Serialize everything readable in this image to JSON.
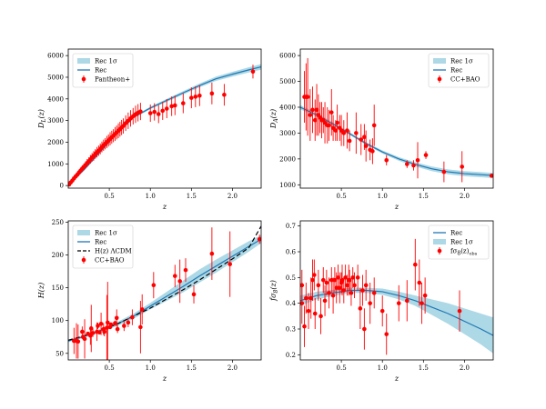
{
  "colors": {
    "band": "#add8e6",
    "line": "#1f77b4",
    "data": "#ff0000",
    "lcdm": "#000000"
  },
  "chart_data": [
    {
      "type": "scatter",
      "id": "dl",
      "xlabel": "z",
      "ylabel": "D_L(z)",
      "xlim": [
        0.0,
        2.35
      ],
      "ylim": [
        -120,
        6300
      ],
      "xticks": [
        0.5,
        1.0,
        1.5,
        2.0
      ],
      "xtick_labels": [
        "0.5",
        "1.0",
        "1.5",
        "2.0"
      ],
      "yticks": [
        0,
        1000,
        2000,
        3000,
        4000,
        5000,
        6000
      ],
      "ytick_labels": [
        "0",
        "1000",
        "2000",
        "3000",
        "4000",
        "5000",
        "6000"
      ],
      "legend": {
        "position": "upper-left",
        "entries": [
          {
            "kind": "band",
            "label": "Rec 1σ"
          },
          {
            "kind": "line",
            "label": "Rec"
          },
          {
            "kind": "marker",
            "label": "Pantheon+"
          }
        ]
      },
      "curve": {
        "x": [
          0.0,
          0.2,
          0.4,
          0.6,
          0.8,
          1.0,
          1.2,
          1.4,
          1.6,
          1.8,
          2.0,
          2.2,
          2.35
        ],
        "y": [
          0,
          760,
          1600,
          2430,
          3160,
          3580,
          3930,
          4280,
          4620,
          4930,
          5140,
          5340,
          5480
        ],
        "sigma": [
          0,
          10,
          20,
          30,
          45,
          60,
          70,
          80,
          90,
          100,
          110,
          120,
          130
        ]
      },
      "points": {
        "x": [
          0.01,
          0.03,
          0.05,
          0.07,
          0.09,
          0.11,
          0.13,
          0.15,
          0.17,
          0.19,
          0.21,
          0.23,
          0.25,
          0.27,
          0.29,
          0.31,
          0.33,
          0.35,
          0.37,
          0.39,
          0.41,
          0.43,
          0.45,
          0.47,
          0.49,
          0.51,
          0.53,
          0.55,
          0.57,
          0.59,
          0.61,
          0.63,
          0.65,
          0.67,
          0.7,
          0.73,
          0.76,
          0.79,
          0.82,
          0.85,
          0.88,
          1.0,
          1.05,
          1.1,
          1.15,
          1.2,
          1.26,
          1.3,
          1.4,
          1.5,
          1.55,
          1.6,
          1.75,
          1.9,
          2.25
        ],
        "y": [
          50,
          140,
          230,
          330,
          420,
          500,
          600,
          690,
          780,
          860,
          950,
          1040,
          1120,
          1210,
          1300,
          1370,
          1460,
          1540,
          1610,
          1690,
          1780,
          1860,
          1930,
          2010,
          2080,
          2160,
          2230,
          2300,
          2380,
          2450,
          2530,
          2600,
          2680,
          2750,
          2880,
          2990,
          3100,
          3200,
          3290,
          3360,
          3420,
          3340,
          3400,
          3300,
          3450,
          3550,
          3660,
          3700,
          3800,
          4050,
          4100,
          4150,
          4250,
          4190,
          5260
        ],
        "err": [
          20,
          40,
          50,
          80,
          100,
          100,
          120,
          120,
          150,
          150,
          160,
          180,
          180,
          200,
          200,
          220,
          220,
          240,
          240,
          250,
          250,
          260,
          260,
          280,
          280,
          300,
          300,
          300,
          320,
          320,
          340,
          340,
          350,
          350,
          360,
          380,
          380,
          380,
          400,
          400,
          400,
          400,
          400,
          420,
          420,
          440,
          450,
          450,
          460,
          480,
          480,
          480,
          500,
          500,
          320
        ]
      }
    },
    {
      "type": "scatter",
      "id": "da",
      "xlabel": "z",
      "ylabel": "D_A(z)",
      "xlim": [
        0.0,
        2.35
      ],
      "ylim": [
        870,
        6250
      ],
      "xticks": [
        0.5,
        1.0,
        1.5,
        2.0
      ],
      "xtick_labels": [
        "0.5",
        "1.0",
        "1.5",
        "2.0"
      ],
      "yticks": [
        1000,
        2000,
        3000,
        4000,
        5000,
        6000
      ],
      "ytick_labels": [
        "1000",
        "2000",
        "3000",
        "4000",
        "5000",
        "6000"
      ],
      "legend": {
        "position": "upper-right",
        "entries": [
          {
            "kind": "band",
            "label": "Rec 1σ"
          },
          {
            "kind": "line",
            "label": "Rec"
          },
          {
            "kind": "marker",
            "label": "CC+BAO"
          }
        ]
      },
      "curve": {
        "x": [
          0.0,
          0.2,
          0.4,
          0.6,
          0.8,
          1.0,
          1.2,
          1.4,
          1.6,
          1.8,
          2.0,
          2.2,
          2.35
        ],
        "y": [
          4000,
          3700,
          3350,
          2980,
          2600,
          2270,
          2000,
          1790,
          1620,
          1500,
          1430,
          1390,
          1360
        ],
        "sigma": [
          80,
          70,
          60,
          55,
          55,
          60,
          70,
          80,
          90,
          95,
          100,
          100,
          100
        ]
      },
      "points": {
        "x": [
          0.05,
          0.07,
          0.09,
          0.12,
          0.15,
          0.18,
          0.2,
          0.22,
          0.24,
          0.26,
          0.28,
          0.3,
          0.33,
          0.35,
          0.38,
          0.4,
          0.43,
          0.45,
          0.48,
          0.5,
          0.53,
          0.57,
          0.6,
          0.68,
          0.74,
          0.78,
          0.8,
          0.85,
          0.88,
          0.9,
          1.05,
          1.3,
          1.38,
          1.43,
          1.53,
          1.75,
          1.97,
          2.33
        ],
        "y": [
          4400,
          4400,
          4400,
          3700,
          3900,
          3500,
          3900,
          3700,
          3600,
          3500,
          3500,
          3400,
          3300,
          3300,
          3800,
          3200,
          3100,
          3400,
          3200,
          3100,
          3000,
          3100,
          2700,
          3000,
          2750,
          2850,
          2500,
          2350,
          2300,
          3300,
          1950,
          1800,
          1750,
          1950,
          2150,
          1500,
          1700,
          1350
        ],
        "err": [
          1000,
          1300,
          1500,
          1000,
          900,
          800,
          1000,
          800,
          600,
          700,
          500,
          800,
          700,
          600,
          900,
          500,
          400,
          700,
          500,
          600,
          500,
          700,
          400,
          800,
          600,
          500,
          600,
          400,
          500,
          800,
          200,
          150,
          200,
          700,
          150,
          400,
          600,
          60
        ]
      }
    },
    {
      "type": "scatter",
      "id": "hz",
      "xlabel": "z",
      "ylabel": "H(z)",
      "xlim": [
        0.0,
        2.35
      ],
      "ylim": [
        40,
        252
      ],
      "xticks": [
        0.5,
        1.0,
        1.5,
        2.0
      ],
      "xtick_labels": [
        "0.5",
        "1.0",
        "1.5",
        "2.0"
      ],
      "yticks": [
        50,
        100,
        150,
        200,
        250
      ],
      "ytick_labels": [
        "50",
        "100",
        "150",
        "200",
        "250"
      ],
      "legend": {
        "position": "upper-left",
        "entries": [
          {
            "kind": "band",
            "label": "Rec 1σ"
          },
          {
            "kind": "line",
            "label": "Rec"
          },
          {
            "kind": "dashed",
            "label": "H(z) ΛCDM"
          },
          {
            "kind": "marker",
            "label": "CC+BAO"
          }
        ]
      },
      "curve": {
        "x": [
          0.0,
          0.2,
          0.4,
          0.6,
          0.8,
          1.0,
          1.2,
          1.4,
          1.6,
          1.8,
          2.0,
          2.2,
          2.35
        ],
        "y": [
          69,
          76,
          85,
          95,
          107,
          122,
          137,
          152,
          168,
          183,
          198,
          213,
          224
        ],
        "sigma": [
          2,
          2,
          3,
          3,
          4,
          5,
          7,
          9,
          10,
          10,
          9,
          8,
          6
        ]
      },
      "lcdm": {
        "x": [
          0.0,
          0.2,
          0.4,
          0.6,
          0.8,
          1.0,
          1.2,
          1.4,
          1.6,
          1.8,
          2.0,
          2.2,
          2.35
        ],
        "y": [
          70,
          77,
          85,
          95,
          107,
          119,
          133,
          147,
          162,
          178,
          194,
          211,
          244
        ]
      },
      "points": {
        "x": [
          0.07,
          0.1,
          0.12,
          0.17,
          0.18,
          0.2,
          0.24,
          0.27,
          0.28,
          0.3,
          0.35,
          0.36,
          0.38,
          0.4,
          0.43,
          0.44,
          0.47,
          0.48,
          0.51,
          0.52,
          0.57,
          0.59,
          0.6,
          0.68,
          0.73,
          0.78,
          0.88,
          0.9,
          1.04,
          1.3,
          1.36,
          1.43,
          1.53,
          1.75,
          1.97,
          2.33
        ],
        "y": [
          69,
          69,
          68,
          83,
          75,
          72,
          80,
          77,
          88,
          81,
          83,
          92,
          82,
          95,
          87,
          83,
          89,
          97,
          90,
          94,
          96,
          104,
          87,
          92,
          97,
          105,
          90,
          117,
          154,
          168,
          160,
          177,
          140,
          202,
          186,
          224
        ],
        "err": [
          20,
          27,
          26,
          8,
          4,
          30,
          3,
          14,
          36,
          6,
          14,
          5,
          2,
          17,
          9,
          7,
          50,
          62,
          2,
          3,
          4,
          13,
          6,
          8,
          7,
          12,
          40,
          23,
          20,
          17,
          33,
          18,
          14,
          40,
          50,
          7
        ]
      }
    },
    {
      "type": "scatter",
      "id": "fs8",
      "xlabel": "z",
      "ylabel": "fσ8(z)",
      "xlim": [
        0.0,
        2.35
      ],
      "ylim": [
        0.18,
        0.72
      ],
      "xticks": [
        0.5,
        1.0,
        1.5,
        2.0
      ],
      "xtick_labels": [
        "0.5",
        "1.0",
        "1.5",
        "2.0"
      ],
      "yticks": [
        0.2,
        0.3,
        0.4,
        0.5,
        0.6,
        0.7
      ],
      "ytick_labels": [
        "0.2",
        "0.3",
        "0.4",
        "0.5",
        "0.6",
        "0.7"
      ],
      "legend": {
        "position": "upper-right",
        "entries": [
          {
            "kind": "line",
            "label": "Rec"
          },
          {
            "kind": "band",
            "label": "Rec 1σ"
          },
          {
            "kind": "marker",
            "label": "fσ8(z)obs"
          }
        ]
      },
      "curve": {
        "x": [
          0.0,
          0.2,
          0.4,
          0.6,
          0.8,
          1.0,
          1.2,
          1.4,
          1.6,
          1.8,
          2.0,
          2.2,
          2.35
        ],
        "y": [
          0.41,
          0.43,
          0.44,
          0.45,
          0.45,
          0.445,
          0.43,
          0.41,
          0.385,
          0.36,
          0.33,
          0.3,
          0.275
        ],
        "sigma": [
          0.02,
          0.015,
          0.012,
          0.01,
          0.01,
          0.012,
          0.015,
          0.02,
          0.03,
          0.04,
          0.05,
          0.06,
          0.07
        ]
      },
      "points": {
        "x": [
          0.02,
          0.02,
          0.05,
          0.07,
          0.1,
          0.13,
          0.15,
          0.17,
          0.18,
          0.22,
          0.25,
          0.28,
          0.3,
          0.32,
          0.35,
          0.38,
          0.4,
          0.42,
          0.44,
          0.46,
          0.48,
          0.5,
          0.51,
          0.53,
          0.55,
          0.57,
          0.59,
          0.6,
          0.62,
          0.64,
          0.66,
          0.7,
          0.73,
          0.76,
          0.78,
          0.8,
          0.85,
          0.9,
          1.0,
          1.05,
          1.2,
          1.3,
          1.4,
          1.45,
          1.48,
          1.52,
          1.94
        ],
        "y": [
          0.47,
          0.4,
          0.31,
          0.42,
          0.37,
          0.42,
          0.49,
          0.51,
          0.36,
          0.47,
          0.35,
          0.49,
          0.41,
          0.48,
          0.44,
          0.49,
          0.43,
          0.49,
          0.46,
          0.5,
          0.46,
          0.48,
          0.49,
          0.45,
          0.5,
          0.47,
          0.49,
          0.49,
          0.44,
          0.5,
          0.47,
          0.5,
          0.38,
          0.45,
          0.3,
          0.47,
          0.4,
          0.44,
          0.37,
          0.28,
          0.4,
          0.41,
          0.55,
          0.48,
          0.4,
          0.43,
          0.37
        ],
        "err": [
          0.06,
          0.08,
          0.08,
          0.06,
          0.07,
          0.08,
          0.08,
          0.06,
          0.06,
          0.06,
          0.07,
          0.05,
          0.06,
          0.05,
          0.06,
          0.05,
          0.07,
          0.05,
          0.06,
          0.05,
          0.06,
          0.04,
          0.06,
          0.05,
          0.05,
          0.04,
          0.06,
          0.04,
          0.05,
          0.04,
          0.05,
          0.05,
          0.08,
          0.06,
          0.08,
          0.06,
          0.08,
          0.06,
          0.06,
          0.08,
          0.07,
          0.08,
          0.1,
          0.09,
          0.08,
          0.07,
          0.08
        ]
      }
    }
  ]
}
